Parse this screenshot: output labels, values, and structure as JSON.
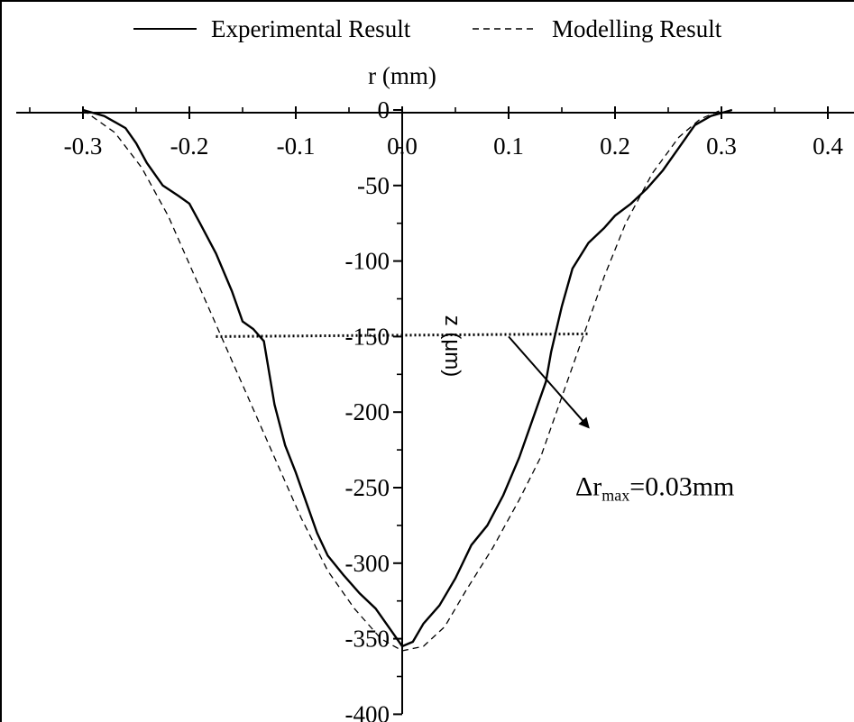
{
  "chart_data": {
    "type": "line",
    "xlabel": "r (mm)",
    "ylabel": "z (μm)",
    "xlim": [
      -0.35,
      0.4
    ],
    "ylim": [
      -400,
      0
    ],
    "x_ticks": [
      -0.3,
      -0.2,
      -0.1,
      0.0,
      0.1,
      0.2,
      0.3,
      0.4
    ],
    "x_tick_labels": [
      "-0.3",
      "-0.2",
      "-0.1",
      "0.0",
      "0.1",
      "0.2",
      "0.3",
      "0.4"
    ],
    "y_ticks": [
      0,
      -50,
      -100,
      -150,
      -200,
      -250,
      -300,
      -350,
      -400
    ],
    "y_tick_labels": [
      "0",
      "-50",
      "-100",
      "-150",
      "-200",
      "-250",
      "-300",
      "-350",
      "-400"
    ],
    "legend_position": "top",
    "legend": [
      "Experimental Result",
      "Modelling Result"
    ],
    "grid": false,
    "series": [
      {
        "name": "Experimental Result",
        "style": "solid",
        "points": [
          [
            -0.3,
            0
          ],
          [
            -0.28,
            -4
          ],
          [
            -0.26,
            -12
          ],
          [
            -0.25,
            -22
          ],
          [
            -0.24,
            -35
          ],
          [
            -0.225,
            -50
          ],
          [
            -0.21,
            -57
          ],
          [
            -0.2,
            -62
          ],
          [
            -0.19,
            -75
          ],
          [
            -0.175,
            -95
          ],
          [
            -0.16,
            -120
          ],
          [
            -0.15,
            -140
          ],
          [
            -0.14,
            -145
          ],
          [
            -0.13,
            -153
          ],
          [
            -0.12,
            -195
          ],
          [
            -0.11,
            -222
          ],
          [
            -0.1,
            -240
          ],
          [
            -0.09,
            -260
          ],
          [
            -0.08,
            -280
          ],
          [
            -0.07,
            -295
          ],
          [
            -0.055,
            -308
          ],
          [
            -0.04,
            -320
          ],
          [
            -0.025,
            -330
          ],
          [
            -0.01,
            -345
          ],
          [
            0.0,
            -355
          ],
          [
            0.01,
            -352
          ],
          [
            0.02,
            -340
          ],
          [
            0.035,
            -328
          ],
          [
            0.05,
            -310
          ],
          [
            0.065,
            -288
          ],
          [
            0.08,
            -275
          ],
          [
            0.095,
            -255
          ],
          [
            0.11,
            -230
          ],
          [
            0.125,
            -200
          ],
          [
            0.135,
            -180
          ],
          [
            0.14,
            -160
          ],
          [
            0.15,
            -130
          ],
          [
            0.16,
            -105
          ],
          [
            0.175,
            -88
          ],
          [
            0.19,
            -78
          ],
          [
            0.2,
            -70
          ],
          [
            0.215,
            -62
          ],
          [
            0.23,
            -52
          ],
          [
            0.245,
            -40
          ],
          [
            0.26,
            -25
          ],
          [
            0.275,
            -10
          ],
          [
            0.29,
            -4
          ],
          [
            0.31,
            0
          ]
        ]
      },
      {
        "name": "Modelling Result",
        "style": "dashed",
        "points": [
          [
            -0.3,
            0
          ],
          [
            -0.27,
            -15
          ],
          [
            -0.245,
            -38
          ],
          [
            -0.22,
            -70
          ],
          [
            -0.195,
            -110
          ],
          [
            -0.17,
            -150
          ],
          [
            -0.145,
            -190
          ],
          [
            -0.12,
            -230
          ],
          [
            -0.095,
            -270
          ],
          [
            -0.07,
            -305
          ],
          [
            -0.045,
            -330
          ],
          [
            -0.02,
            -350
          ],
          [
            0.0,
            -358
          ],
          [
            0.02,
            -355
          ],
          [
            0.04,
            -342
          ],
          [
            0.06,
            -318
          ],
          [
            0.085,
            -290
          ],
          [
            0.11,
            -258
          ],
          [
            0.13,
            -230
          ],
          [
            0.15,
            -190
          ],
          [
            0.17,
            -150
          ],
          [
            0.19,
            -110
          ],
          [
            0.21,
            -75
          ],
          [
            0.235,
            -42
          ],
          [
            0.26,
            -18
          ],
          [
            0.28,
            -6
          ],
          [
            0.3,
            0
          ]
        ]
      }
    ],
    "annotations": [
      {
        "type": "dotted-line",
        "x_from": -0.175,
        "x_to": 0.175,
        "y": -150
      },
      {
        "type": "arrow-label",
        "text_main": "Δr",
        "text_sub": "max",
        "text_rest": "=0.03mm",
        "arrow_from": [
          0.1,
          -150
        ],
        "arrow_to": [
          0.175,
          -210
        ],
        "label_at": [
          0.15,
          -243
        ]
      }
    ]
  }
}
